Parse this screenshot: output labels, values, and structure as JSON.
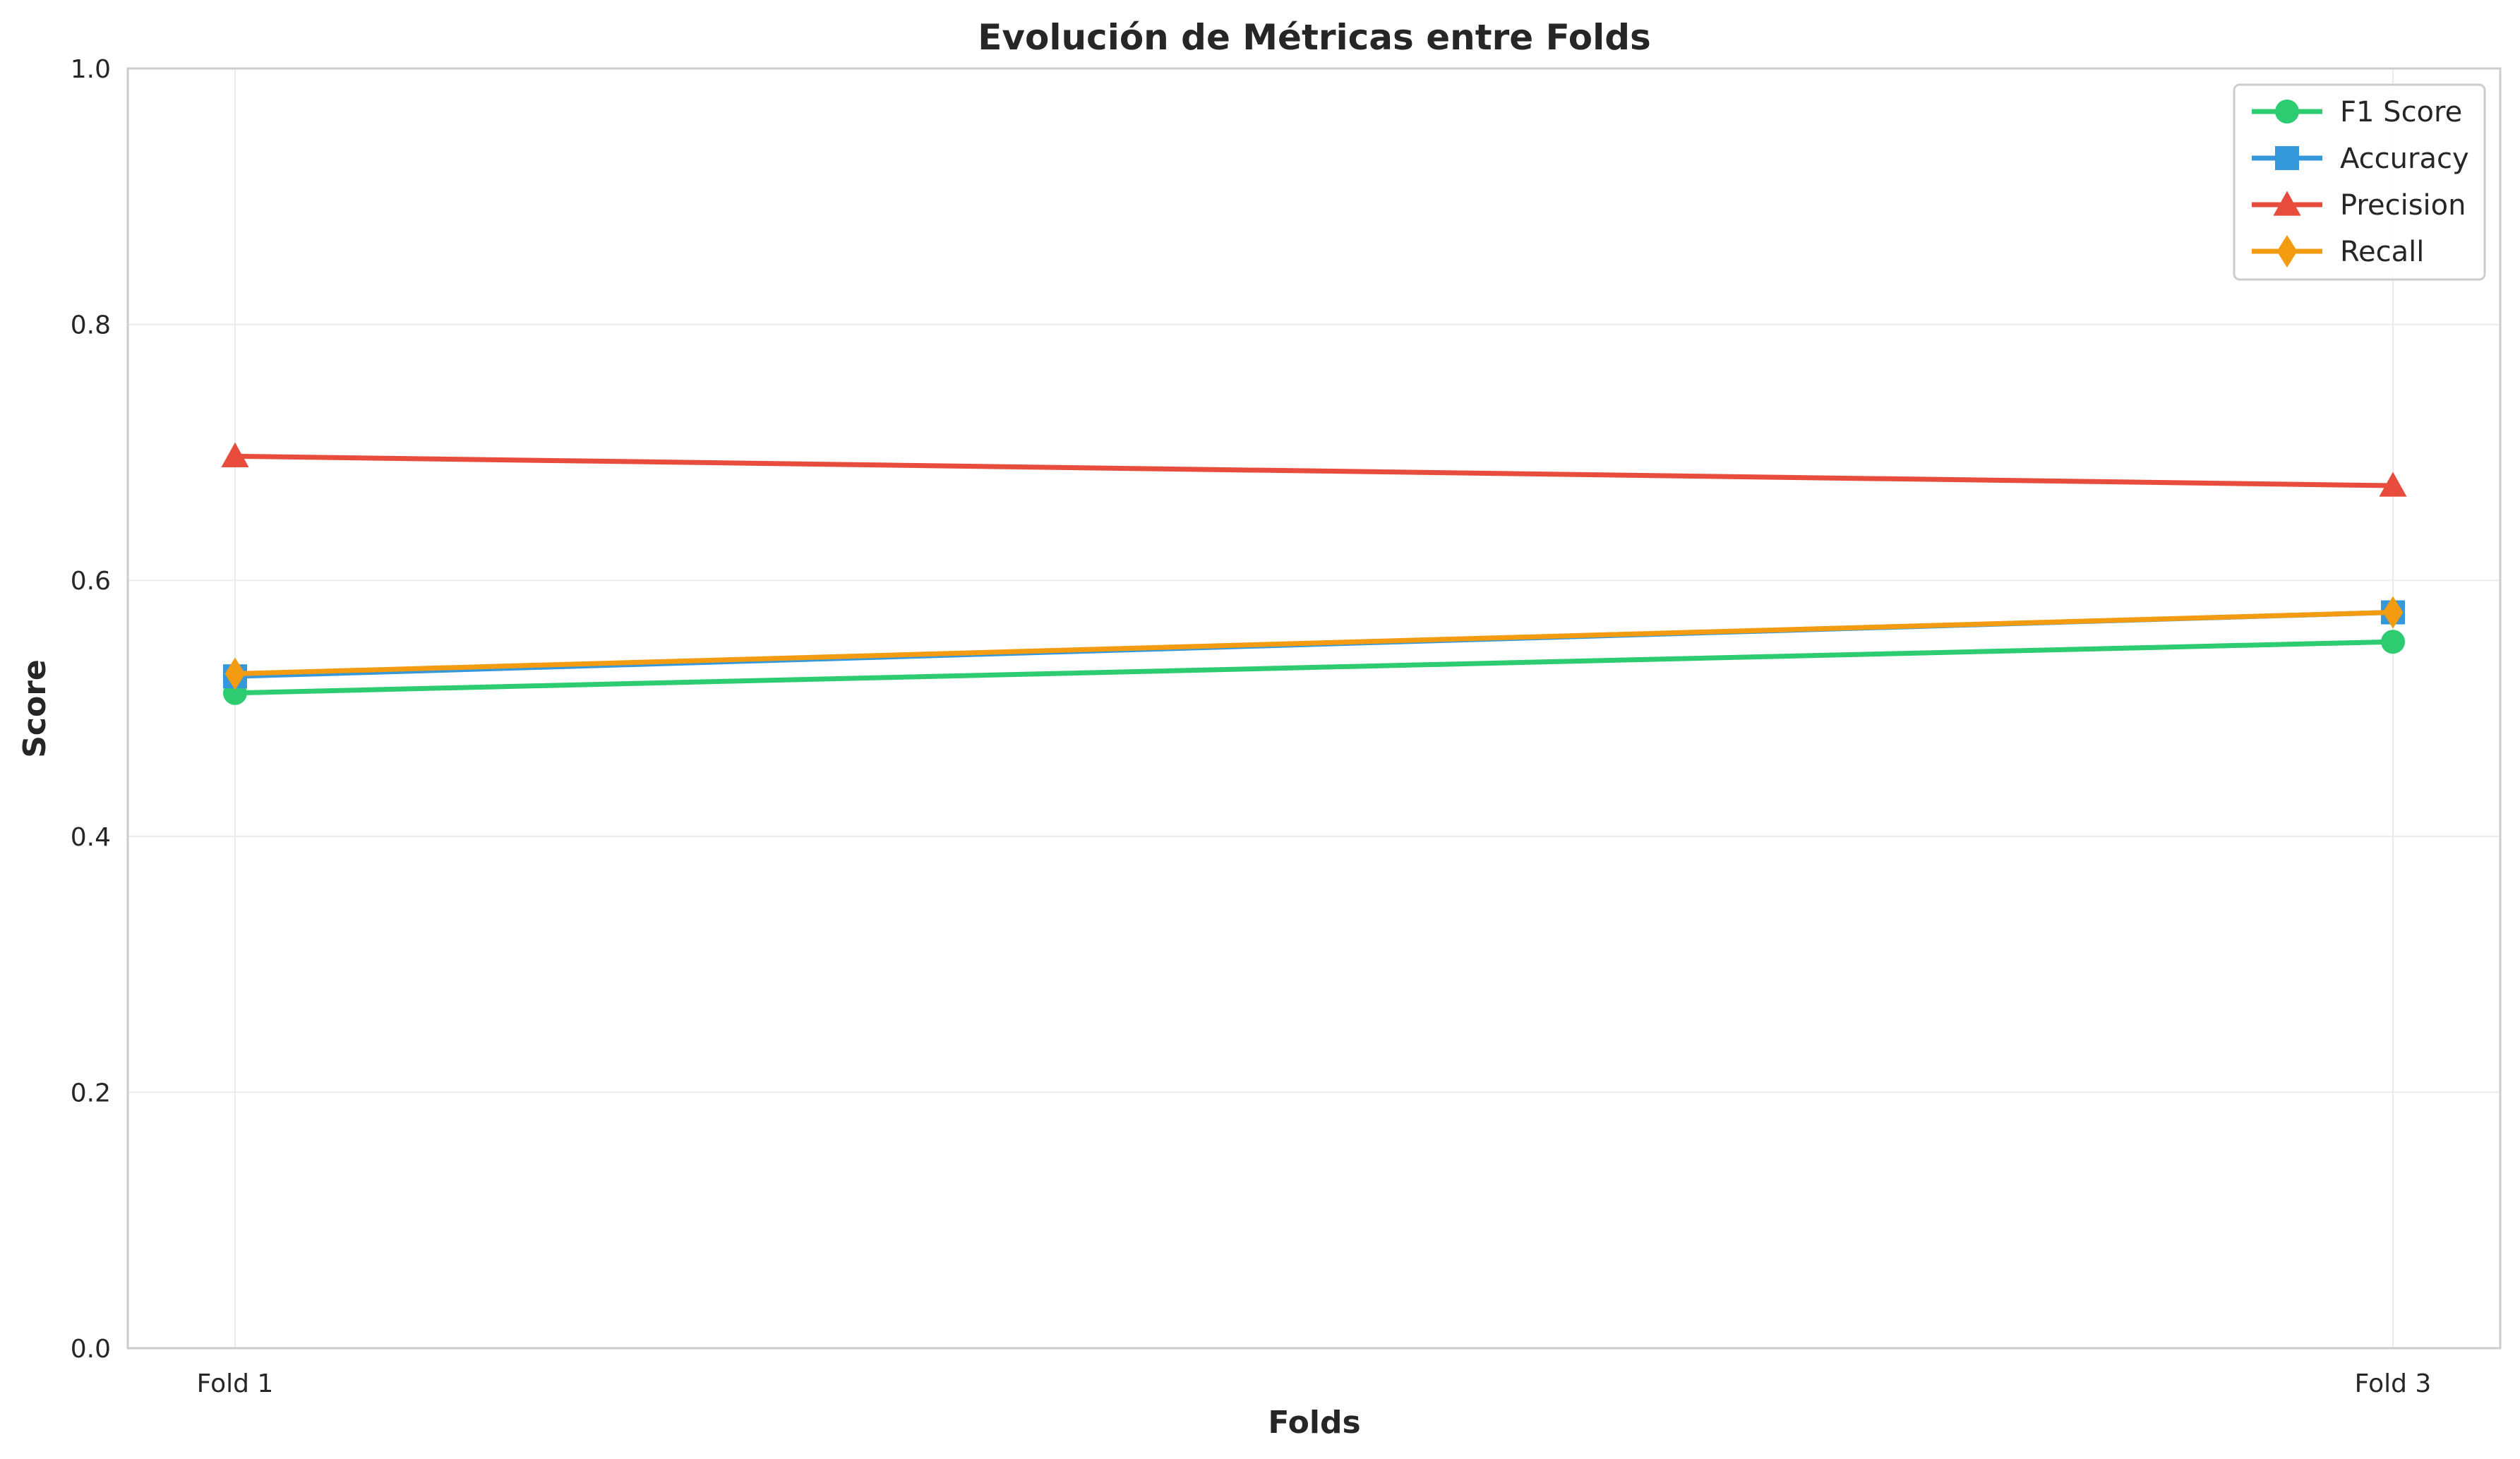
{
  "chart_data": {
    "type": "line",
    "title": "Evolución de Métricas entre Folds",
    "xlabel": "Folds",
    "ylabel": "Score",
    "categories": [
      "Fold 1",
      "Fold 3"
    ],
    "ylim": [
      0,
      1
    ],
    "yticks": [
      "0.0",
      "0.2",
      "0.4",
      "0.6",
      "0.8",
      "1.0"
    ],
    "grid": true,
    "legend_position": "top-right",
    "series": [
      {
        "name": "F1 Score",
        "values": [
          0.512,
          0.552
        ],
        "color": "#2ecc71",
        "marker": "circle"
      },
      {
        "name": "Accuracy",
        "values": [
          0.525,
          0.575
        ],
        "color": "#3498db",
        "marker": "square"
      },
      {
        "name": "Precision",
        "values": [
          0.697,
          0.674
        ],
        "color": "#e74c3c",
        "marker": "triangle"
      },
      {
        "name": "Recall",
        "values": [
          0.527,
          0.575
        ],
        "color": "#f39c12",
        "marker": "diamond"
      }
    ]
  }
}
